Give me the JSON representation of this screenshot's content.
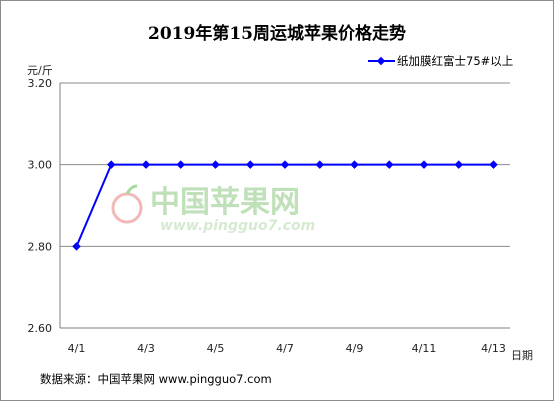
{
  "chart_data": {
    "type": "line",
    "title": "2019年第15周运城苹果价格走势",
    "ylabel": "元/斤",
    "xlabel": "日期",
    "ylim": [
      2.6,
      3.2
    ],
    "y_ticks": [
      "2.60",
      "2.80",
      "3.00",
      "3.20"
    ],
    "grid": "horizontal",
    "legend_position": "top-right",
    "categories": [
      "4/1",
      "4/2",
      "4/3",
      "4/4",
      "4/5",
      "4/6",
      "4/7",
      "4/8",
      "4/9",
      "4/10",
      "4/11",
      "4/12",
      "4/13"
    ],
    "x_tick_labels": [
      "4/1",
      "",
      "4/3",
      "",
      "4/5",
      "",
      "4/7",
      "",
      "4/9",
      "",
      "4/11",
      "",
      "4/13"
    ],
    "series": [
      {
        "name": "纸加膜红富士75#以上",
        "color": "#0000ff",
        "values": [
          2.8,
          3.0,
          3.0,
          3.0,
          3.0,
          3.0,
          3.0,
          3.0,
          3.0,
          3.0,
          3.0,
          3.0,
          3.0
        ]
      }
    ]
  },
  "watermark": {
    "cn": "中国苹果网",
    "en": "www.pingguo7.com"
  },
  "footer": {
    "source": "数据来源：中国苹果网 www.pingguo7.com"
  }
}
